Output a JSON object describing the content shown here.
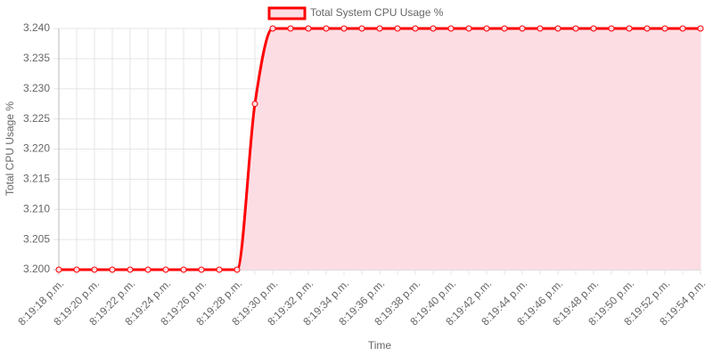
{
  "chart_data": {
    "type": "line",
    "x_label": "Time",
    "y_label": "Total CPU Usage %",
    "categories": [
      "8:19:18 p.m.",
      null,
      "8:19:20 p.m.",
      null,
      "8:19:22 p.m.",
      null,
      "8:19:24 p.m.",
      null,
      "8:19:26 p.m.",
      null,
      "8:19:28 p.m.",
      null,
      "8:19:30 p.m.",
      null,
      "8:19:32 p.m.",
      null,
      "8:19:34 p.m.",
      null,
      "8:19:36 p.m.",
      null,
      "8:19:38 p.m.",
      null,
      "8:19:40 p.m.",
      null,
      "8:19:42 p.m.",
      null,
      "8:19:44 p.m.",
      null,
      "8:19:46 p.m.",
      null,
      "8:19:48 p.m.",
      null,
      "8:19:50 p.m.",
      null,
      "8:19:52 p.m.",
      null,
      "8:19:54 p.m."
    ],
    "series": [
      {
        "name": "Total System CPU Usage %",
        "color": "#ff0000",
        "fill_color": "#fddde4",
        "values": [
          3.2,
          3.2,
          3.2,
          3.2,
          3.2,
          3.2,
          3.2,
          3.2,
          3.2,
          3.2,
          3.2,
          3.2275,
          3.24,
          3.24,
          3.24,
          3.24,
          3.24,
          3.24,
          3.24,
          3.24,
          3.24,
          3.24,
          3.24,
          3.24,
          3.24,
          3.24,
          3.24,
          3.24,
          3.24,
          3.24,
          3.24,
          3.24,
          3.24,
          3.24,
          3.24,
          3.24,
          3.24
        ]
      }
    ],
    "ylim": [
      3.2,
      3.24
    ],
    "yticks": [
      {
        "value": 3.2,
        "label": "3.200"
      },
      {
        "value": 3.205,
        "label": "3.205"
      },
      {
        "value": 3.21,
        "label": "3.210"
      },
      {
        "value": 3.215,
        "label": "3.215"
      },
      {
        "value": 3.22,
        "label": "3.220"
      },
      {
        "value": 3.225,
        "label": "3.225"
      },
      {
        "value": 3.23,
        "label": "3.230"
      },
      {
        "value": 3.235,
        "label": "3.235"
      },
      {
        "value": 3.24,
        "label": "3.240"
      }
    ],
    "grid": true,
    "legend": "top"
  }
}
